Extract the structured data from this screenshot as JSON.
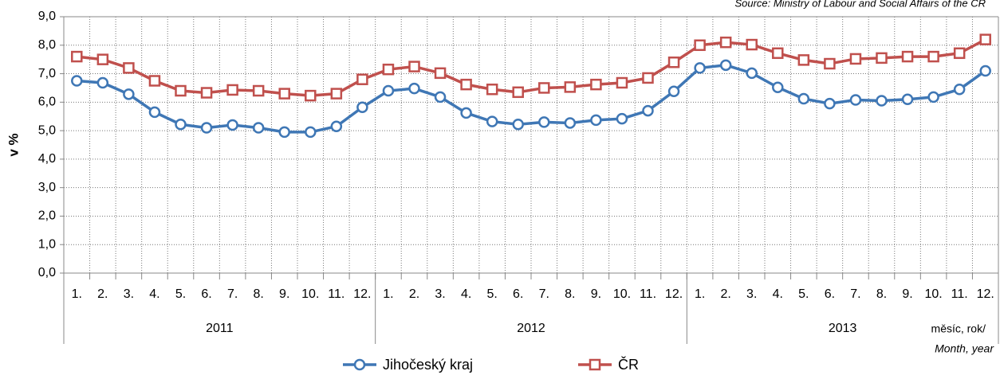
{
  "chart_data": {
    "type": "line",
    "source": "Source: Ministry of Labour and Social Affairs of the CR",
    "ylabel": "v %",
    "xlabel_cz": "měsíc, rok/",
    "xlabel_en": "Month, year",
    "categories": [
      "1.",
      "2.",
      "3.",
      "4.",
      "5.",
      "6.",
      "7.",
      "8.",
      "9.",
      "10.",
      "11.",
      "12.",
      "1.",
      "2.",
      "3.",
      "4.",
      "5.",
      "6.",
      "7.",
      "8.",
      "9.",
      "10.",
      "11.",
      "12.",
      "1.",
      "2.",
      "3.",
      "4.",
      "5.",
      "6.",
      "7.",
      "8.",
      "9.",
      "10.",
      "11.",
      "12."
    ],
    "groups": [
      "2011",
      "2012",
      "2013"
    ],
    "series": [
      {
        "name": "Jihočeský kraj",
        "color": "#3f77b5",
        "marker": "circle",
        "values": [
          6.75,
          6.68,
          6.28,
          5.65,
          5.22,
          5.1,
          5.2,
          5.1,
          4.95,
          4.95,
          5.15,
          5.82,
          6.4,
          6.48,
          6.18,
          5.62,
          5.32,
          5.22,
          5.3,
          5.27,
          5.37,
          5.42,
          5.7,
          6.38,
          7.2,
          7.3,
          7.02,
          6.52,
          6.12,
          5.95,
          6.08,
          6.05,
          6.1,
          6.18,
          6.45,
          7.1
        ]
      },
      {
        "name": "ČR",
        "color": "#c0504d",
        "marker": "square",
        "values": [
          7.6,
          7.5,
          7.2,
          6.75,
          6.4,
          6.33,
          6.43,
          6.4,
          6.3,
          6.23,
          6.3,
          6.8,
          7.15,
          7.25,
          7.02,
          6.62,
          6.45,
          6.35,
          6.5,
          6.53,
          6.62,
          6.68,
          6.85,
          7.4,
          8.0,
          8.1,
          8.02,
          7.72,
          7.48,
          7.35,
          7.52,
          7.55,
          7.6,
          7.6,
          7.72,
          8.2
        ]
      }
    ],
    "ylim": [
      0,
      9
    ],
    "yticks": [
      {
        "value": 0,
        "label": "0,0"
      },
      {
        "value": 1,
        "label": "1,0"
      },
      {
        "value": 2,
        "label": "2,0"
      },
      {
        "value": 3,
        "label": "3,0"
      },
      {
        "value": 4,
        "label": "4,0"
      },
      {
        "value": 5,
        "label": "5,0"
      },
      {
        "value": 6,
        "label": "6,0"
      },
      {
        "value": 7,
        "label": "7,0"
      },
      {
        "value": 8,
        "label": "8,0"
      },
      {
        "value": 9,
        "label": "9,0"
      }
    ],
    "grid": true
  }
}
